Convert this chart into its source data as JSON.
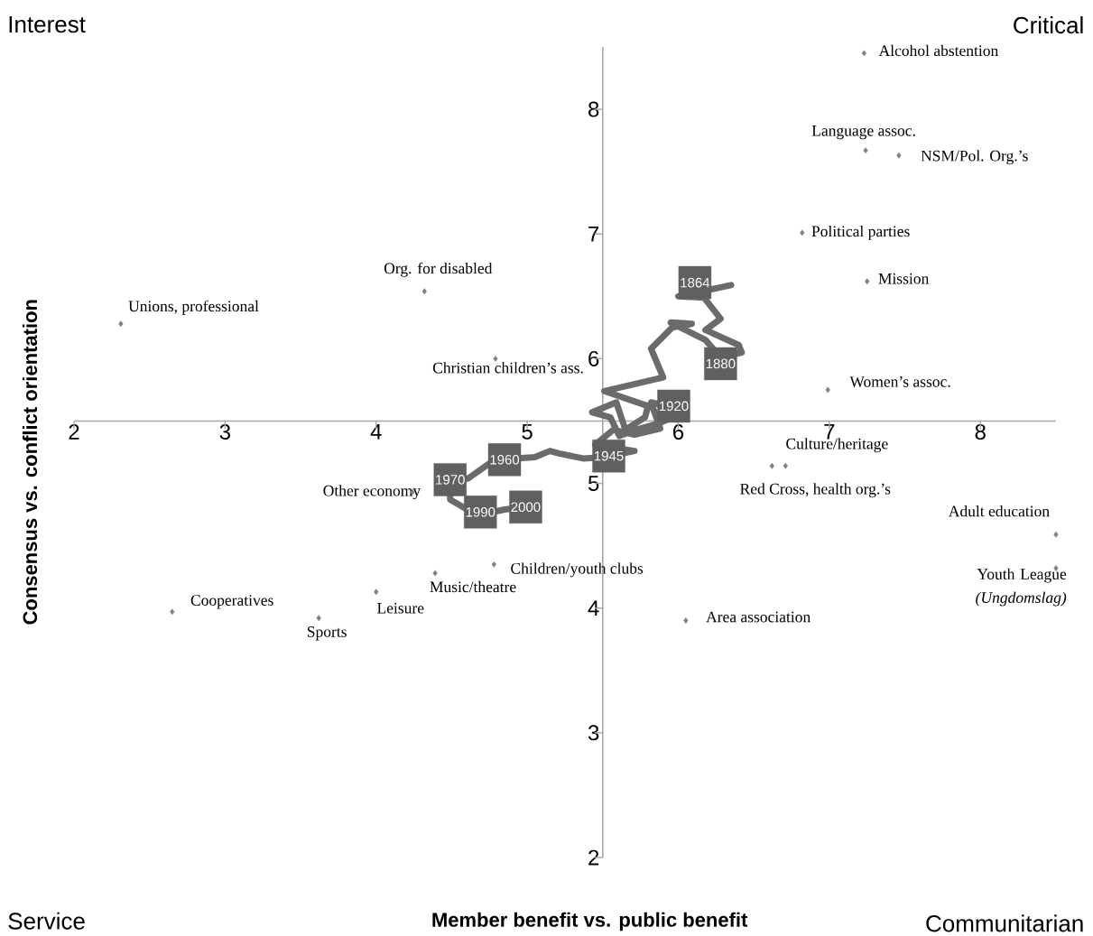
{
  "chart_data": {
    "type": "scatter",
    "xlabel": "Member benefit vs. public benefit",
    "ylabel": "Consensus vs. conflict orientation",
    "xlim": [
      2,
      8.5
    ],
    "ylim": [
      2,
      8.5
    ],
    "xticks": [
      2,
      3,
      4,
      5,
      6,
      7,
      8
    ],
    "yticks": [
      2,
      3,
      4,
      5,
      6,
      7,
      8
    ],
    "series": [
      {
        "type": "line",
        "color": "#6b6b6b",
        "marker": "none",
        "x": [
          6.35,
          6.0,
          6.17,
          6.28,
          6.18,
          6.4,
          6.42,
          6.28,
          6.18,
          5.95,
          6.09,
          5.96,
          5.82,
          5.9,
          5.51,
          5.8,
          5.78,
          5.65,
          5.59,
          5.43,
          5.55,
          5.61,
          5.72,
          5.87,
          5.96,
          5.92,
          5.82,
          5.88,
          5.71,
          5.57,
          5.45,
          5.71,
          5.51,
          5.37,
          5.21,
          5.15,
          5.05,
          4.81,
          4.75,
          4.61,
          4.49,
          4.49,
          4.59,
          4.69,
          4.85,
          4.98
        ],
        "values": [
          6.59,
          6.5,
          6.49,
          6.32,
          6.23,
          6.11,
          6.05,
          6.01,
          6.15,
          6.29,
          6.28,
          6.25,
          6.08,
          5.85,
          5.74,
          5.62,
          5.53,
          5.43,
          5.65,
          5.57,
          5.53,
          5.38,
          5.43,
          5.48,
          5.53,
          5.62,
          5.65,
          5.44,
          5.39,
          5.43,
          5.31,
          5.26,
          5.21,
          5.2,
          5.24,
          5.26,
          5.21,
          5.19,
          5.16,
          5.04,
          5.02,
          4.87,
          4.8,
          4.75,
          4.79,
          4.81
        ]
      },
      {
        "type": "scatter",
        "color": "#606060",
        "marker": "square",
        "x": [
          6.11,
          6.28,
          5.97,
          5.54,
          4.85,
          4.49,
          4.69,
          4.99
        ],
        "values": [
          6.61,
          5.96,
          5.62,
          5.22,
          5.19,
          5.03,
          4.77,
          4.81
        ]
      },
      {
        "type": "scatter",
        "color": "#808080",
        "marker": "diamond",
        "x": [
          2.31,
          4.32,
          4.79,
          7.23,
          7.24,
          7.46,
          6.82,
          7.25,
          6.99,
          6.71,
          6.62,
          4.24,
          4.78,
          4.39,
          4.0,
          2.65,
          3.62,
          6.05,
          8.5,
          8.5
        ],
        "values": [
          6.28,
          6.54,
          6.0,
          8.45,
          7.67,
          7.63,
          7.01,
          6.62,
          5.75,
          5.14,
          5.14,
          4.93,
          4.35,
          4.28,
          4.13,
          3.97,
          3.92,
          3.9,
          4.59,
          4.32
        ]
      }
    ],
    "annotations": [
      "Interest",
      "Critical",
      "Service",
      "Communitarian",
      {
        "text": "Unions, professional",
        "x": 2.31,
        "y": 6.28
      },
      {
        "text": "Org. for disabled",
        "x": 4.32,
        "y": 6.54
      },
      {
        "text": "Christian children’s ass.",
        "x": 4.79,
        "y": 6.0
      },
      {
        "text": "Alcohol abstention",
        "x": 7.23,
        "y": 8.45
      },
      {
        "text": "Language assoc.",
        "x": 7.24,
        "y": 7.67
      },
      {
        "text": "NSM/Pol. Org.’s",
        "x": 7.46,
        "y": 7.63
      },
      {
        "text": "Political parties",
        "x": 6.82,
        "y": 7.01
      },
      {
        "text": "Mission",
        "x": 7.25,
        "y": 6.62
      },
      {
        "text": "Women’s assoc.",
        "x": 6.99,
        "y": 5.75
      },
      {
        "text": "Culture/heritage",
        "x": 6.71,
        "y": 5.14
      },
      {
        "text": "Red Cross, health org.’s",
        "x": 6.62,
        "y": 5.14
      },
      {
        "text": "Other economy",
        "x": 4.24,
        "y": 4.93
      },
      {
        "text": "Children/youth clubs",
        "x": 4.78,
        "y": 4.35
      },
      {
        "text": "Music/theatre",
        "x": 4.39,
        "y": 4.28
      },
      {
        "text": "Leisure",
        "x": 4.0,
        "y": 4.13
      },
      {
        "text": "Cooperatives",
        "x": 2.65,
        "y": 3.97
      },
      {
        "text": "Sports",
        "x": 3.62,
        "y": 3.92
      },
      {
        "text": "Area association",
        "x": 6.05,
        "y": 3.9
      },
      {
        "text": "Adult education",
        "x": 8.5,
        "y": 4.59
      },
      {
        "text": "Youth League *(Ungdomslag)*",
        "x": 8.5,
        "y": 4.32
      },
      {
        "text": "1864",
        "x": 6.11,
        "y": 6.61
      },
      {
        "text": "1880",
        "x": 6.28,
        "y": 5.96
      },
      {
        "text": "1920",
        "x": 5.97,
        "y": 5.62
      },
      {
        "text": "1945",
        "x": 5.54,
        "y": 5.22
      },
      {
        "text": "1960",
        "x": 4.85,
        "y": 5.19
      },
      {
        "text": "1970",
        "x": 4.49,
        "y": 5.03
      },
      {
        "text": "1990",
        "x": 4.69,
        "y": 4.77
      },
      {
        "text": "2000",
        "x": 4.99,
        "y": 4.81
      }
    ]
  }
}
